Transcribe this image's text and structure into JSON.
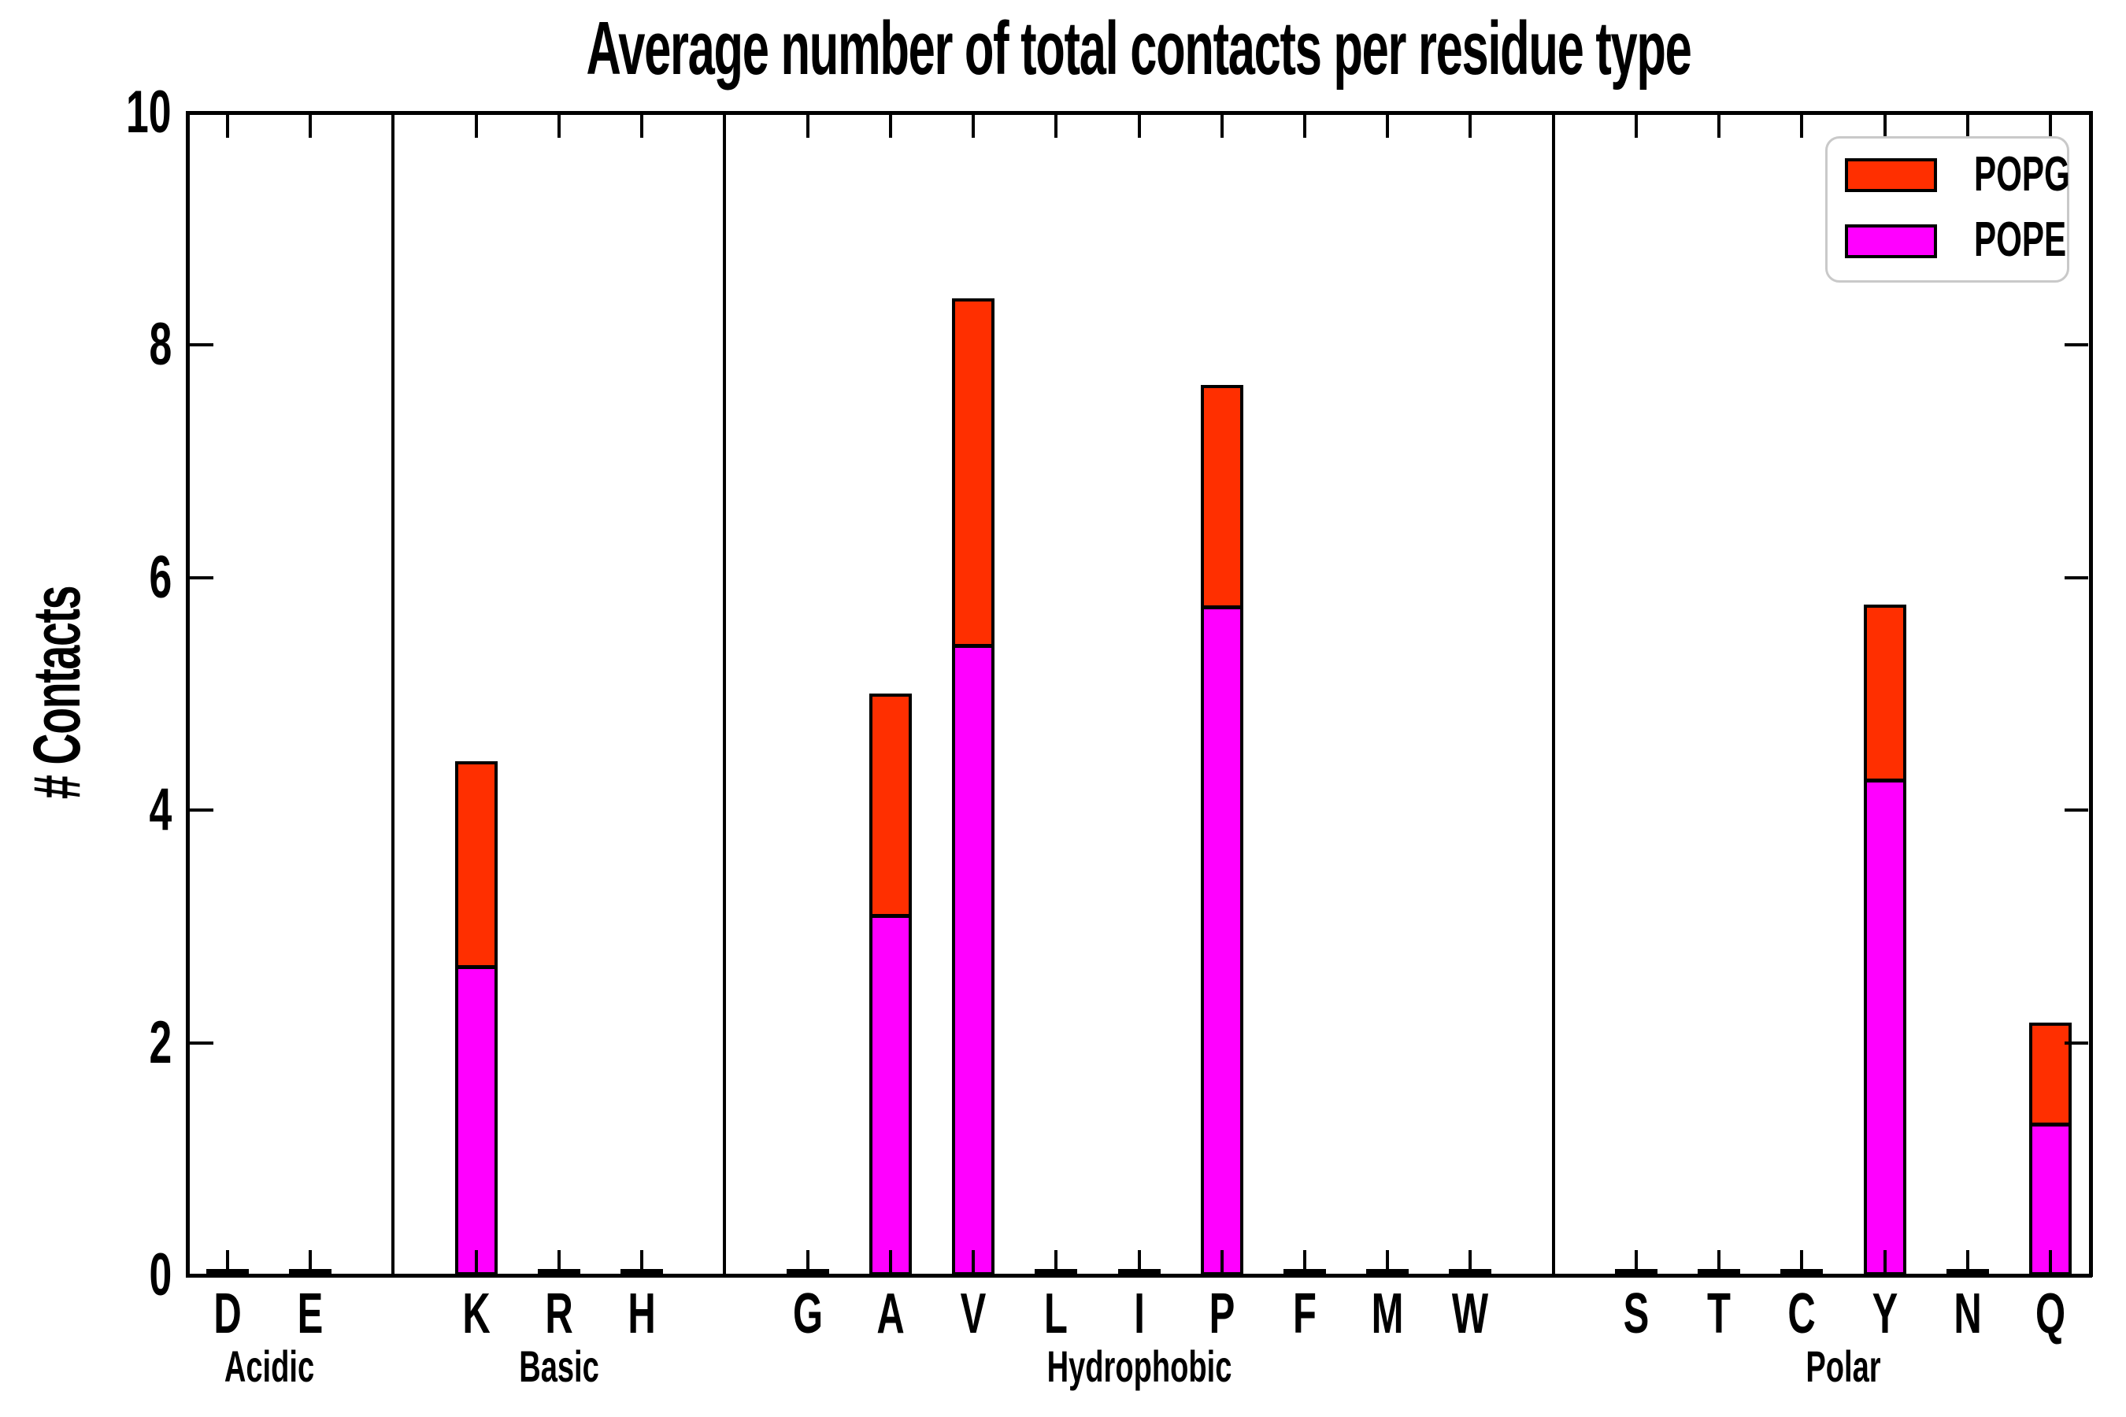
{
  "title": "Average number of total contacts per residue type",
  "ylabel": "# Contacts",
  "legend": {
    "entries": [
      {
        "label": "POPG",
        "color": "#ff2f00"
      },
      {
        "label": "POPE",
        "color": "#ff00ff"
      }
    ]
  },
  "colors": {
    "popg_red": "#ff2f00",
    "pope_magenta": "#ff00ff",
    "axis_black": "#000000",
    "legend_border_gray": "#c9c9c9",
    "background": "#ffffff"
  },
  "chart_data": {
    "type": "bar",
    "stacked": true,
    "title": "Average number of total contacts per residue type",
    "xlabel": "",
    "ylabel": "# Contacts",
    "ylim": [
      0,
      10
    ],
    "yticks": [
      0,
      2,
      4,
      6,
      8,
      10
    ],
    "grid": false,
    "legend_position": "upper right",
    "categories": [
      "D",
      "E",
      "K",
      "R",
      "H",
      "G",
      "A",
      "V",
      "L",
      "I",
      "P",
      "F",
      "M",
      "W",
      "S",
      "T",
      "C",
      "Y",
      "N",
      "Q"
    ],
    "slots": [
      0,
      1,
      3,
      4,
      5,
      7,
      8,
      9,
      10,
      11,
      12,
      13,
      14,
      15,
      17,
      18,
      19,
      20,
      21,
      22
    ],
    "total_slots": 23,
    "separator_slots": [
      2,
      6,
      16
    ],
    "groups": [
      {
        "label": "Acidic",
        "center_slot": 0.5,
        "residues": [
          "D",
          "E"
        ]
      },
      {
        "label": "Basic",
        "center_slot": 4,
        "residues": [
          "K",
          "R",
          "H"
        ]
      },
      {
        "label": "Hydrophobic",
        "center_slot": 11,
        "residues": [
          "G",
          "A",
          "V",
          "L",
          "I",
          "P",
          "F",
          "M",
          "W"
        ]
      },
      {
        "label": "Polar",
        "center_slot": 19.5,
        "residues": [
          "S",
          "T",
          "C",
          "Y",
          "N",
          "Q"
        ]
      }
    ],
    "series": [
      {
        "name": "POPE",
        "color": "#ff00ff",
        "values": [
          0.03,
          0.03,
          2.66,
          0.03,
          0.03,
          0.03,
          3.1,
          5.42,
          0.03,
          0.03,
          5.76,
          0.03,
          0.03,
          0.03,
          0.03,
          0.03,
          0.03,
          4.27,
          0.03,
          1.3
        ]
      },
      {
        "name": "POPG",
        "color": "#ff2f00",
        "values": [
          0,
          0,
          1.76,
          0,
          0,
          0,
          1.9,
          2.98,
          0,
          0,
          1.9,
          0,
          0,
          0,
          0,
          0,
          0,
          1.5,
          0,
          0.87
        ]
      }
    ]
  }
}
